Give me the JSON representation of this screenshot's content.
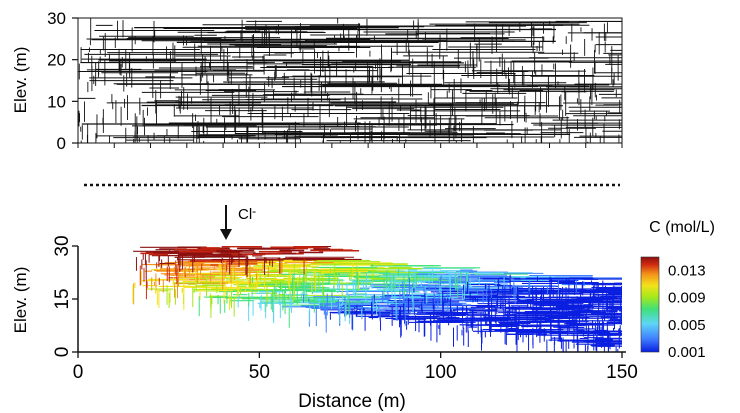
{
  "top_panel": {
    "ylabel": "Elev. (m)",
    "yticks": [
      0,
      10,
      20,
      30
    ],
    "ylim": [
      0,
      30
    ],
    "xlim": [
      0,
      150
    ]
  },
  "bottom_panel": {
    "ylabel": "Elev. (m)",
    "xlabel": "Distance (m)",
    "xticks": [
      0,
      50,
      100,
      150
    ],
    "yticks": [
      0,
      15,
      30
    ],
    "xlim": [
      0,
      150
    ],
    "ylim": [
      0,
      30
    ],
    "injection": {
      "label": "Cl",
      "superscript": "-",
      "x": 40
    }
  },
  "colorbar": {
    "title": "C (mol/L)",
    "ticks": [
      "0.013",
      "0.009",
      "0.005",
      "0.001"
    ],
    "range": [
      0.001,
      0.015
    ],
    "colormap": [
      "#0a1fe0",
      "#3f7fff",
      "#5fd6f6",
      "#3fe07a",
      "#a6e81a",
      "#f2e21a",
      "#f4921a",
      "#d02b0f",
      "#8c1010"
    ]
  },
  "colors": {
    "fracture": "#111111",
    "separator": "#111111"
  }
}
